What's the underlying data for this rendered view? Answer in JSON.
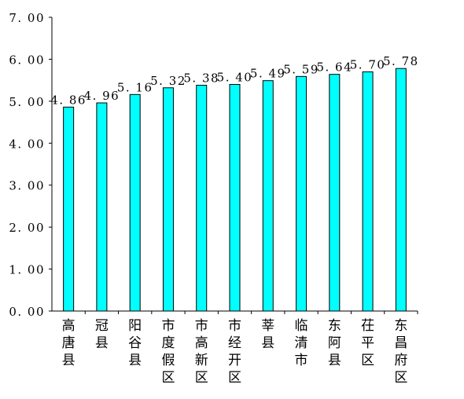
{
  "chart_data": {
    "type": "bar",
    "categories": [
      "高唐县",
      "冠县",
      "阳谷县",
      "市度假区",
      "市高新区",
      "市经开区",
      "莘县",
      "临清市",
      "东阿县",
      "茌平区",
      "东昌府区"
    ],
    "values": [
      4.86,
      4.96,
      5.16,
      5.32,
      5.38,
      5.4,
      5.49,
      5.59,
      5.64,
      5.7,
      5.78
    ],
    "value_labels": [
      "4. 86",
      "4. 96",
      "5. 16",
      "5. 32",
      "5. 38",
      "5. 40",
      "5. 49",
      "5. 59",
      "5. 64",
      "5. 70",
      "5. 78"
    ],
    "y_tick_labels": [
      "0. 00",
      "1. 00",
      "2. 00",
      "3. 00",
      "4. 00",
      "5. 00",
      "6. 00",
      "7. 00"
    ],
    "ylim": [
      0,
      7
    ],
    "y_ticks": [
      0,
      1,
      2,
      3,
      4,
      5,
      6,
      7
    ],
    "grid": false,
    "legend": "none",
    "bar_color": "#00ffff",
    "bar_edge_color": "#000000",
    "title": "",
    "xlabel": "",
    "ylabel": ""
  }
}
